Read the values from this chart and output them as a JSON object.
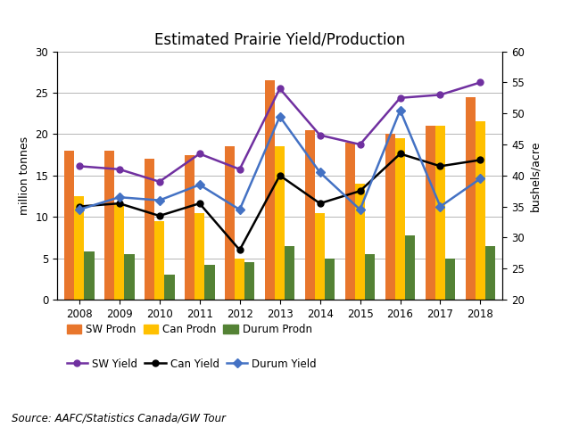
{
  "title": "Estimated Prairie Yield/Production",
  "years": [
    2008,
    2009,
    2010,
    2011,
    2012,
    2013,
    2014,
    2015,
    2016,
    2017,
    2018
  ],
  "sw_prodn": [
    18.0,
    18.0,
    17.0,
    17.5,
    18.5,
    26.5,
    20.5,
    19.0,
    20.0,
    21.0,
    24.5
  ],
  "can_prodn": [
    12.5,
    11.5,
    9.5,
    10.5,
    5.0,
    18.5,
    10.5,
    14.0,
    19.5,
    21.0,
    21.5
  ],
  "durum_prodn": [
    5.8,
    5.5,
    3.0,
    4.2,
    4.5,
    6.5,
    5.0,
    5.5,
    7.8,
    5.0,
    6.5
  ],
  "sw_yield": [
    41.5,
    41.0,
    39.0,
    43.5,
    41.0,
    54.0,
    46.5,
    45.0,
    52.5,
    53.0,
    55.0
  ],
  "can_yield": [
    35.0,
    35.5,
    33.5,
    35.5,
    28.0,
    40.0,
    35.5,
    37.5,
    43.5,
    41.5,
    42.5
  ],
  "durum_yield": [
    34.5,
    36.5,
    36.0,
    38.5,
    34.5,
    49.5,
    40.5,
    34.5,
    50.5,
    35.0,
    39.5
  ],
  "bar_colors": {
    "sw_prodn": "#E8762C",
    "can_prodn": "#FFC000",
    "durum_prodn": "#548235"
  },
  "line_colors": {
    "sw_yield": "#7030A0",
    "can_yield": "#000000",
    "durum_yield": "#4472C4"
  },
  "ylabel_left": "million tonnes",
  "ylabel_right": "bushels/acre",
  "ylim_left": [
    0,
    30
  ],
  "ylim_right": [
    20,
    60
  ],
  "yticks_left": [
    0,
    5,
    10,
    15,
    20,
    25,
    30
  ],
  "yticks_right": [
    20,
    25,
    30,
    35,
    40,
    45,
    50,
    55,
    60
  ],
  "source_text": "Source: AAFC/Statistics Canada/GW Tour",
  "legend1": [
    "SW Prodn",
    "Can Prodn",
    "Durum Prodn"
  ],
  "legend2": [
    "SW Yield",
    "Can Yield",
    "Durum Yield"
  ],
  "background_color": "#ffffff",
  "bar_width": 0.25
}
